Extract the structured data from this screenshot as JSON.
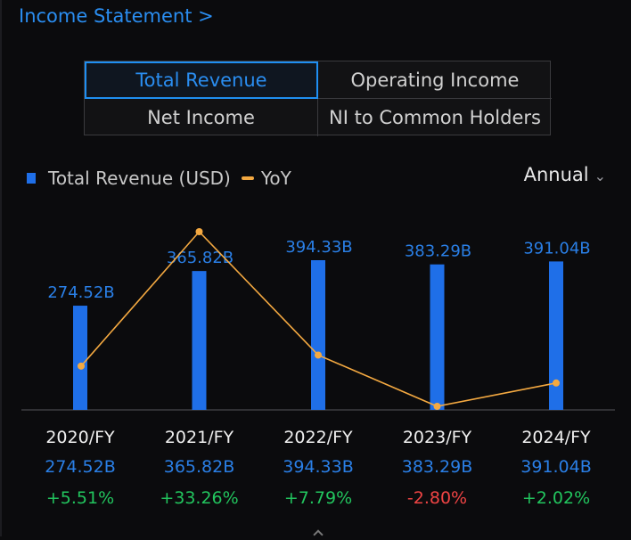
{
  "header": {
    "title": "Income Statement >"
  },
  "tabs": [
    {
      "label": "Total Revenue",
      "active": true
    },
    {
      "label": "Operating Income",
      "active": false
    },
    {
      "label": "Net Income",
      "active": false
    },
    {
      "label": "NI to Common Holders",
      "active": false
    }
  ],
  "legend": {
    "bar_label": "Total Revenue (USD)",
    "line_label": "YoY"
  },
  "period_select": {
    "value": "Annual"
  },
  "colors": {
    "bar": "#1f6fe8",
    "bar_label": "#2a7fe6",
    "line": "#f4a941",
    "positive": "#22c55e",
    "negative": "#ef4444",
    "axis": "#55555a"
  },
  "chart_data": {
    "type": "bar",
    "title": "Total Revenue (USD)",
    "categories": [
      "2020/FY",
      "2021/FY",
      "2022/FY",
      "2023/FY",
      "2024/FY"
    ],
    "series": [
      {
        "name": "Total Revenue (USD)",
        "type": "bar",
        "values": [
          274.52,
          365.82,
          394.33,
          383.29,
          391.04
        ],
        "labels": [
          "274.52B",
          "365.82B",
          "394.33B",
          "383.29B",
          "391.04B"
        ]
      },
      {
        "name": "YoY",
        "type": "line",
        "values": [
          5.51,
          33.26,
          7.79,
          -2.8,
          2.02
        ],
        "labels": [
          "+5.51%",
          "+33.26%",
          "+7.79%",
          "-2.80%",
          "+2.02%"
        ]
      }
    ]
  }
}
